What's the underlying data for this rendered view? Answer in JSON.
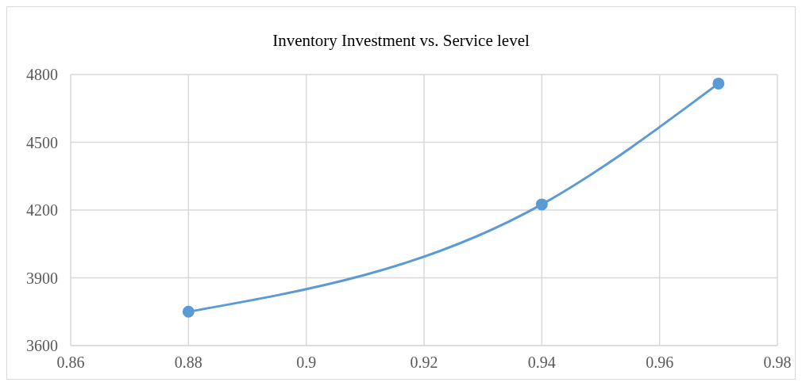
{
  "chart_data": {
    "type": "line",
    "title": "Inventory Investment vs. Service level",
    "x": [
      0.88,
      0.94,
      0.97
    ],
    "series": [
      {
        "color": "#5b9bd5",
        "values": [
          3750,
          4225,
          4760
        ]
      }
    ],
    "xlim": [
      0.86,
      0.98
    ],
    "xticks": [
      0.86,
      0.88,
      0.9,
      0.92,
      0.94,
      0.96,
      0.98
    ],
    "ylim": [
      3600,
      4800
    ],
    "yticks": [
      3600,
      3900,
      4200,
      4500,
      4800
    ],
    "grid": true,
    "marker": "circle",
    "line_style": "solid"
  }
}
